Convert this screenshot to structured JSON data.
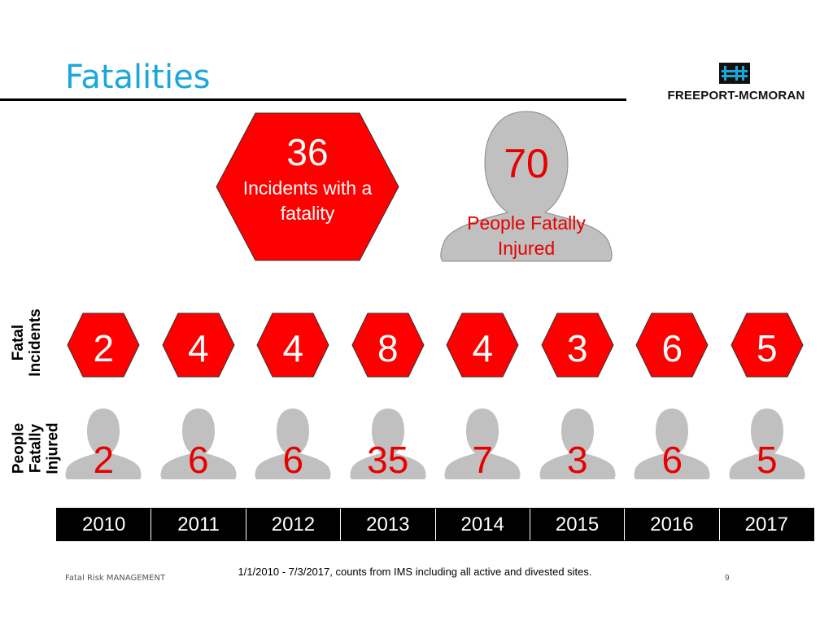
{
  "header": {
    "title": "Fatalities"
  },
  "logo": {
    "text": "FREEPORT-MCMORAN",
    "mark": "FM"
  },
  "summary": {
    "incidents_value": "36",
    "incidents_label": "Incidents with a fatality",
    "people_value": "70",
    "people_label": "People Fatally Injured"
  },
  "rows": {
    "fatal_incidents_label": "Fatal Incidents",
    "people_fatally_injured_label": "People Fatally Injured"
  },
  "years": [
    {
      "year": "2010",
      "incidents": "2",
      "people": "2"
    },
    {
      "year": "2011",
      "incidents": "4",
      "people": "6"
    },
    {
      "year": "2012",
      "incidents": "4",
      "people": "6"
    },
    {
      "year": "2013",
      "incidents": "8",
      "people": "35"
    },
    {
      "year": "2014",
      "incidents": "4",
      "people": "7"
    },
    {
      "year": "2015",
      "incidents": "3",
      "people": "3"
    },
    {
      "year": "2016",
      "incidents": "6",
      "people": "6"
    },
    {
      "year": "2017",
      "incidents": "5",
      "people": "5"
    }
  ],
  "footer": {
    "note": "1/1/2010 - 7/3/2017, counts from IMS including all active and divested sites.",
    "left": "Fatal Risk MANAGEMENT",
    "page": "9"
  },
  "colors": {
    "hexagon": "#ff0000",
    "person": "#c0c0c0",
    "accent_title": "#1aa7d9",
    "number_red": "#e60000"
  }
}
